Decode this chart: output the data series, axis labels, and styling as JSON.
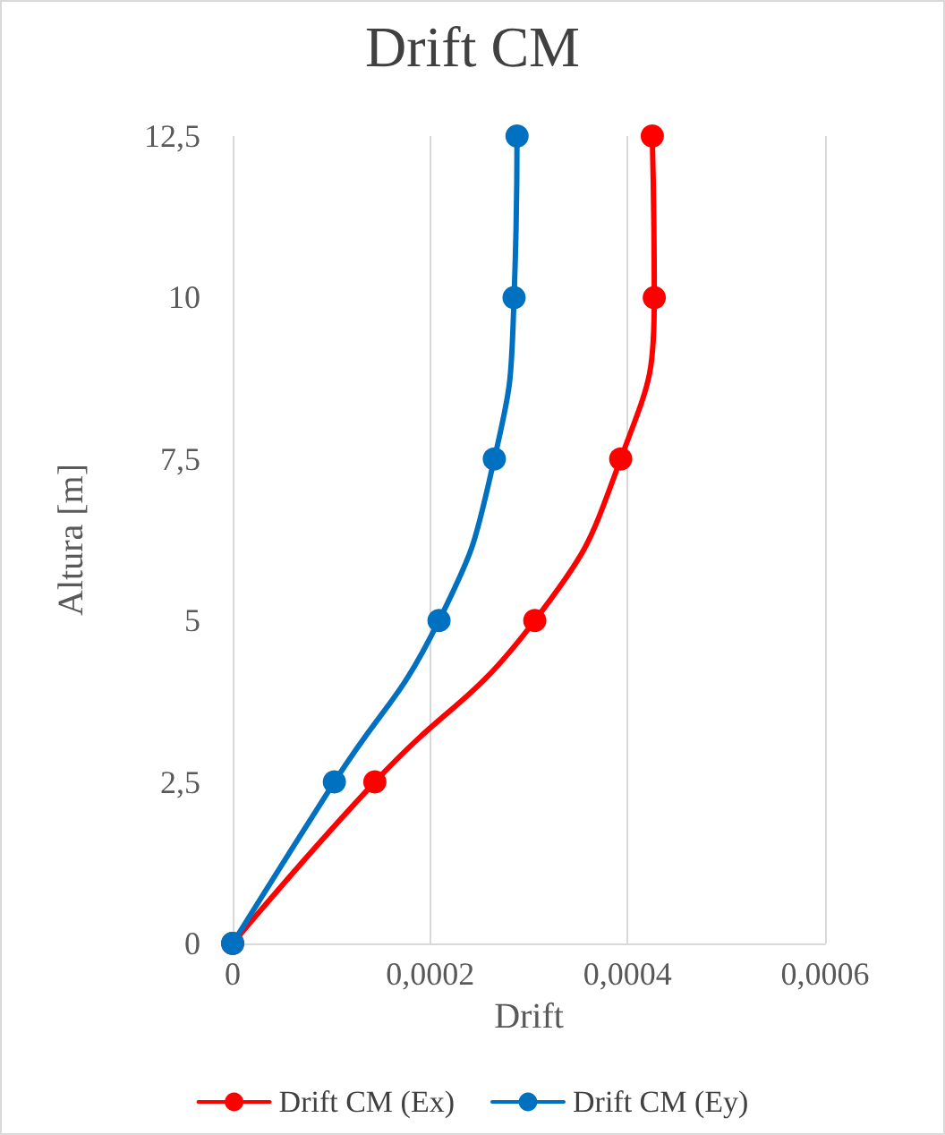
{
  "chart_data": {
    "type": "line",
    "title": "Drift CM",
    "xlabel": "Drift",
    "ylabel": "Altura [m]",
    "xlim": [
      0,
      0.0006
    ],
    "xticks": [
      0,
      {
        "value": 0.0002,
        "label": "0,0002"
      },
      {
        "value": 0.0004,
        "label": "0,0004"
      },
      {
        "value": 0.0006,
        "label": "0,0006"
      }
    ],
    "ylim": [
      0,
      12.5
    ],
    "yticks": [
      0,
      {
        "value": 2.5,
        "label": "2,5"
      },
      5,
      {
        "value": 7.5,
        "label": "7,5"
      },
      10,
      {
        "value": 12.5,
        "label": "12,5"
      }
    ],
    "grid": "x",
    "legend": "bottom",
    "marker": "circle",
    "line_style": "solid",
    "series": [
      {
        "name": "Drift CM (Ex)",
        "color": "#ff0000",
        "x": [
          0,
          0.000144,
          0.000306,
          0.000393,
          0.000427,
          0.000425
        ],
        "values": [
          0,
          2.5,
          5,
          7.5,
          10,
          12.5
        ]
      },
      {
        "name": "Drift CM (Ey)",
        "color": "#0070c0",
        "x": [
          0,
          0.000103,
          0.000209,
          0.000265,
          0.000285,
          0.000288
        ],
        "values": [
          0,
          2.5,
          5,
          7.5,
          10,
          12.5
        ]
      }
    ]
  }
}
